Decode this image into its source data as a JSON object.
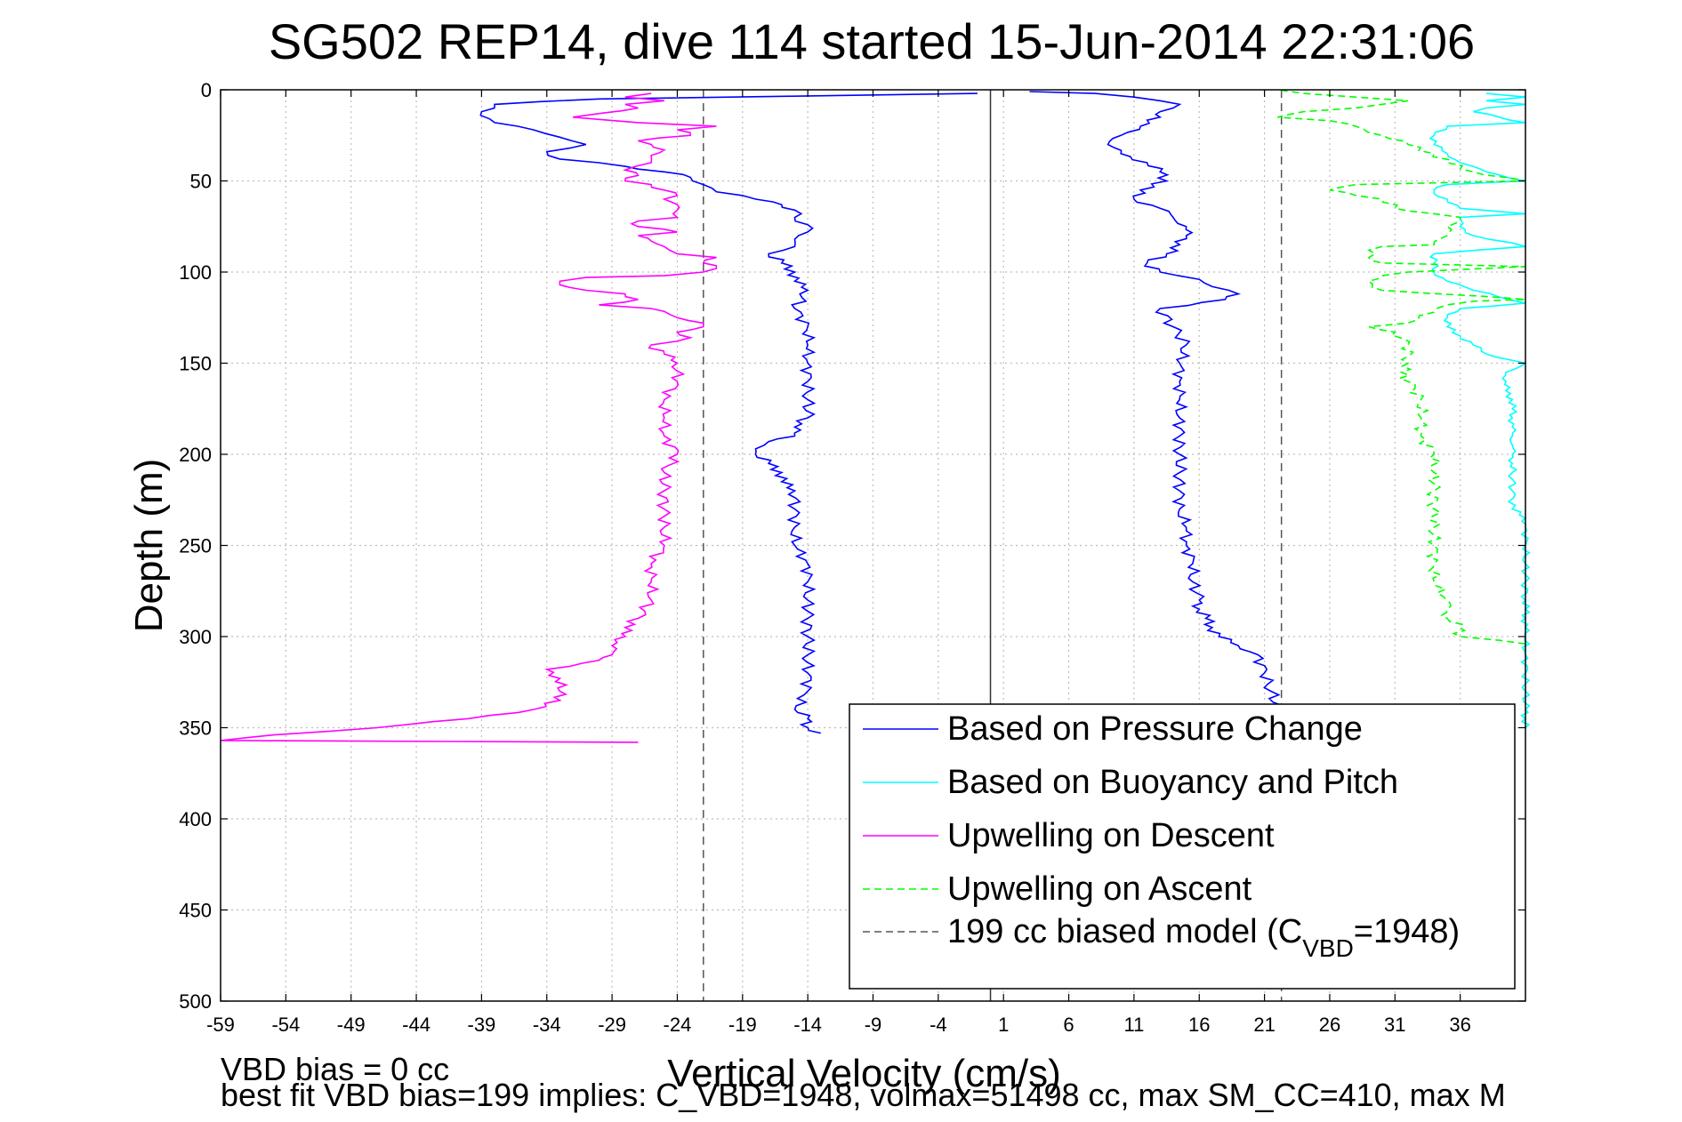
{
  "colors": {
    "pressure": "#0000ff",
    "buoyancy": "#00ffff",
    "desc": "#ff00ff",
    "asc": "#00ff00",
    "model": "#555555"
  },
  "chart_data": {
    "type": "line",
    "title": "SG502 REP14, dive 114 started 15-Jun-2014 22:31:06",
    "xlabel": "Vertical Velocity (cm/s)",
    "ylabel": "Depth (m)",
    "xlim": [
      -59,
      41
    ],
    "ylim": [
      0,
      500
    ],
    "y_reversed": true,
    "grid": true,
    "legend_placement": "bottom-right",
    "x_ticks": [
      -59,
      -54,
      -49,
      -44,
      -39,
      -34,
      -29,
      -24,
      -19,
      -14,
      -9,
      -4,
      1,
      6,
      11,
      16,
      21,
      26,
      31,
      36
    ],
    "y_ticks": [
      0,
      50,
      100,
      150,
      200,
      250,
      300,
      350,
      400,
      450,
      500
    ],
    "reference_lines": [
      {
        "x": -22,
        "style": "dashed",
        "series": "model"
      },
      {
        "x": 22.3,
        "style": "dashed",
        "series": "model"
      },
      {
        "x": 0,
        "style": "solid"
      }
    ],
    "series": [
      {
        "key": "pressure",
        "name": "Based on Pressure Change",
        "style": "solid",
        "descent": {
          "depth": [
            2,
            5,
            8,
            12,
            18,
            22,
            26,
            30,
            34,
            38,
            42,
            45,
            48,
            52,
            56,
            58,
            60,
            63,
            66,
            70,
            74,
            78,
            82,
            86,
            90,
            95,
            100,
            105,
            110,
            120,
            130,
            140,
            150,
            160,
            170,
            180,
            185,
            190,
            193,
            197,
            200,
            205,
            210,
            215,
            220,
            230,
            240,
            250,
            260,
            270,
            280,
            290,
            300,
            310,
            320,
            330,
            340,
            345,
            350,
            353
          ],
          "x": [
            -1,
            -30,
            -38,
            -39,
            -38,
            -35,
            -33,
            -31,
            -34,
            -33,
            -28,
            -25,
            -23,
            -22,
            -21,
            -19,
            -18,
            -16,
            -15,
            -15,
            -14,
            -14,
            -15,
            -15,
            -17,
            -16,
            -15,
            -15,
            -14,
            -15,
            -14,
            -14,
            -14,
            -14,
            -14,
            -14,
            -15,
            -15,
            -17,
            -18,
            -18,
            -17,
            -16,
            -16,
            -15,
            -15,
            -15,
            -15,
            -14,
            -14,
            -14,
            -14,
            -14,
            -14,
            -14,
            -14,
            -15,
            -14,
            -14,
            -13
          ]
        },
        "ascent": {
          "depth": [
            353,
            345,
            340,
            330,
            320,
            310,
            305,
            300,
            295,
            290,
            285,
            280,
            270,
            260,
            250,
            240,
            230,
            220,
            210,
            200,
            190,
            180,
            170,
            160,
            150,
            140,
            130,
            120,
            115,
            112,
            108,
            104,
            100,
            95,
            90,
            85,
            80,
            75,
            70,
            65,
            60,
            55,
            50,
            45,
            40,
            35,
            30,
            25,
            20,
            15,
            12,
            10,
            8,
            6,
            4,
            2,
            1
          ],
          "x": [
            21,
            21.5,
            22,
            21.5,
            21,
            20.5,
            19,
            17.5,
            17,
            16.5,
            16,
            16,
            15.5,
            15.5,
            15,
            15,
            14.5,
            14.5,
            14.5,
            14.5,
            14.5,
            14.5,
            14.5,
            14.5,
            14.5,
            15,
            14,
            13,
            18,
            19,
            17,
            16,
            13,
            12,
            13.5,
            14.5,
            15,
            15,
            14,
            13,
            11,
            11.5,
            13.5,
            13,
            12,
            10,
            9,
            10,
            11.5,
            13,
            13,
            14,
            14.5,
            13,
            11,
            8,
            3
          ]
        }
      },
      {
        "key": "buoyancy",
        "name": "Based on Buoyancy and Pitch",
        "style": "solid",
        "ascent": {
          "depth": [
            350,
            345,
            340,
            330,
            320,
            310,
            300,
            295,
            290,
            285,
            280,
            270,
            260,
            250,
            240,
            235,
            230,
            220,
            210,
            205,
            200,
            195,
            190,
            185,
            180,
            175,
            170,
            165,
            160,
            155,
            150,
            145,
            140,
            135,
            130,
            125,
            120,
            117,
            110,
            105,
            100,
            95,
            90,
            86,
            80,
            75,
            70,
            68,
            65,
            60,
            57,
            55,
            52,
            50,
            45,
            40,
            35,
            30,
            25,
            20,
            18,
            15,
            12,
            10,
            8,
            6,
            4,
            2
          ],
          "x": [
            41,
            41,
            41,
            41,
            41,
            41,
            41,
            41,
            41,
            41,
            41,
            41,
            41,
            41,
            41,
            41,
            40,
            40,
            40,
            40,
            40,
            40,
            40,
            40,
            40,
            40,
            40,
            39.5,
            39.5,
            39.5,
            41,
            38,
            37,
            36,
            35,
            35,
            36,
            41,
            37,
            35,
            34,
            34,
            34,
            41,
            37,
            36,
            36,
            41,
            36,
            35,
            34,
            34,
            35,
            41,
            38,
            36,
            35,
            34,
            34,
            35,
            41,
            39,
            37,
            38,
            41,
            38,
            41,
            38
          ]
        }
      },
      {
        "key": "desc",
        "name": "Upwelling on Descent",
        "style": "solid",
        "depth": [
          2,
          4,
          6,
          8,
          10,
          13,
          15,
          18,
          20,
          22,
          25,
          28,
          30,
          33,
          36,
          40,
          44,
          47,
          50,
          52,
          55,
          58,
          60,
          63,
          66,
          70,
          72,
          75,
          78,
          80,
          83,
          86,
          90,
          92,
          95,
          98,
          100,
          102,
          103,
          105,
          107,
          110,
          112,
          115,
          118,
          120,
          125,
          128,
          130,
          133,
          136,
          140,
          145,
          150,
          160,
          170,
          180,
          190,
          200,
          210,
          220,
          230,
          240,
          250,
          260,
          270,
          280,
          290,
          295,
          300,
          305,
          310,
          313,
          318,
          323,
          330,
          335,
          340,
          345,
          350,
          354,
          357,
          358
        ],
        "x": [
          -26,
          -28,
          -25,
          -28,
          -27,
          -30,
          -32,
          -27,
          -21,
          -24,
          -23,
          -27,
          -26,
          -25,
          -26,
          -26,
          -28,
          -27,
          -28,
          -26,
          -25,
          -24,
          -25,
          -24,
          -24,
          -24,
          -27,
          -27,
          -24,
          -27,
          -26,
          -25,
          -24,
          -21,
          -22,
          -21,
          -22,
          -25,
          -31,
          -33,
          -33,
          -31,
          -28,
          -27,
          -30,
          -26,
          -24,
          -22,
          -22,
          -24,
          -23,
          -26,
          -25,
          -24,
          -24,
          -25,
          -25,
          -25,
          -24,
          -25,
          -25,
          -25,
          -25,
          -25,
          -26,
          -26,
          -26,
          -27,
          -28,
          -28,
          -29,
          -29,
          -30,
          -34,
          -33,
          -33,
          -33,
          -35,
          -40,
          -47,
          -55,
          -59,
          -27
        ]
      },
      {
        "key": "asc",
        "name": "Upwelling on Ascent",
        "style": "dashed",
        "depth": [
          304,
          300,
          295,
          290,
          285,
          280,
          270,
          260,
          250,
          240,
          230,
          220,
          210,
          200,
          190,
          180,
          170,
          160,
          155,
          150,
          140,
          133,
          130,
          128,
          122,
          118,
          116,
          115,
          110,
          105,
          102,
          100,
          97,
          95,
          92,
          88,
          86,
          85,
          80,
          75,
          72,
          70,
          68,
          65,
          60,
          58,
          55,
          52,
          50,
          45,
          40,
          35,
          30,
          25,
          20,
          17,
          15,
          12,
          10,
          8,
          6,
          4,
          2,
          0
        ],
        "x": [
          41,
          36,
          36,
          35,
          35,
          35,
          34,
          34,
          34,
          34,
          34,
          34,
          34,
          34,
          33,
          33,
          33,
          32,
          31.5,
          32,
          32,
          31,
          29,
          32,
          34,
          35,
          37,
          41,
          30,
          29,
          30,
          32,
          41,
          30,
          29,
          29,
          30,
          34,
          35,
          35,
          36,
          36,
          34,
          31,
          30,
          28,
          26,
          28,
          41,
          37,
          35,
          34,
          32,
          30,
          28,
          26,
          22,
          24,
          28,
          30,
          32,
          28,
          24,
          22
        ]
      },
      {
        "key": "model",
        "name": "199 cc biased model (C_VBD=1948)",
        "style": "dashed"
      }
    ],
    "legend": [
      {
        "label": "Based on Pressure Change",
        "series": "pressure",
        "style": "solid"
      },
      {
        "label": "Based on Buoyancy and Pitch",
        "series": "buoyancy",
        "style": "solid"
      },
      {
        "label": "Upwelling on Descent",
        "series": "desc",
        "style": "solid"
      },
      {
        "label": "Upwelling on Ascent",
        "series": "asc",
        "style": "dashed"
      },
      {
        "label_main": "199 cc biased model (C",
        "label_sub": "VBD",
        "label_end": "=1948)",
        "series": "model",
        "style": "dashed"
      }
    ]
  },
  "footer": {
    "line1": "VBD bias = 0 cc",
    "line2": "best fit VBD bias=199 implies: C_VBD=1948, volmax=51498 cc, max SM_CC=410, max M"
  }
}
